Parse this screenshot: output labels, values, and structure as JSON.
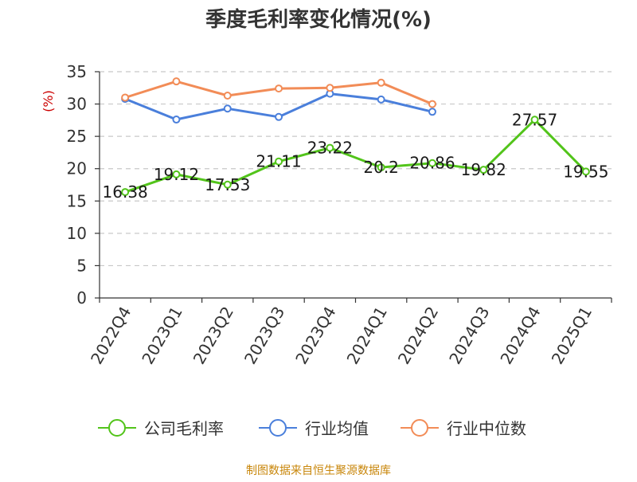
{
  "chart_data": {
    "type": "line",
    "title": "季度毛利率变化情况(%)",
    "ylabel": "(%)",
    "ylim": [
      0,
      35
    ],
    "yticks": [
      0,
      5,
      10,
      15,
      20,
      25,
      30,
      35
    ],
    "grid": "horizontal-dashed",
    "legend_position": "bottom",
    "categories": [
      "2022Q4",
      "2023Q1",
      "2023Q2",
      "2023Q3",
      "2023Q4",
      "2024Q1",
      "2024Q2",
      "2024Q3",
      "2024Q4",
      "2025Q1"
    ],
    "series": [
      {
        "name": "公司毛利率",
        "color": "#52c41a",
        "values": [
          16.38,
          19.12,
          17.53,
          21.11,
          23.22,
          20.2,
          20.86,
          19.82,
          27.57,
          19.55
        ],
        "labels": [
          "16.38",
          "19.12",
          "17.53",
          "21.11",
          "23.22",
          "20.2",
          "20.86",
          "19.82",
          "27.57",
          "19.55"
        ]
      },
      {
        "name": "行业均值",
        "color": "#4a7fdb",
        "values": [
          30.8,
          27.6,
          29.3,
          28.0,
          31.6,
          30.7,
          28.8,
          null,
          null,
          null
        ]
      },
      {
        "name": "行业中位数",
        "color": "#f28c57",
        "values": [
          31.0,
          33.5,
          31.3,
          32.4,
          32.5,
          33.3,
          30.0,
          null,
          null,
          null
        ]
      }
    ]
  },
  "footer": {
    "source": "制图数据来自恒生聚源数据库"
  }
}
